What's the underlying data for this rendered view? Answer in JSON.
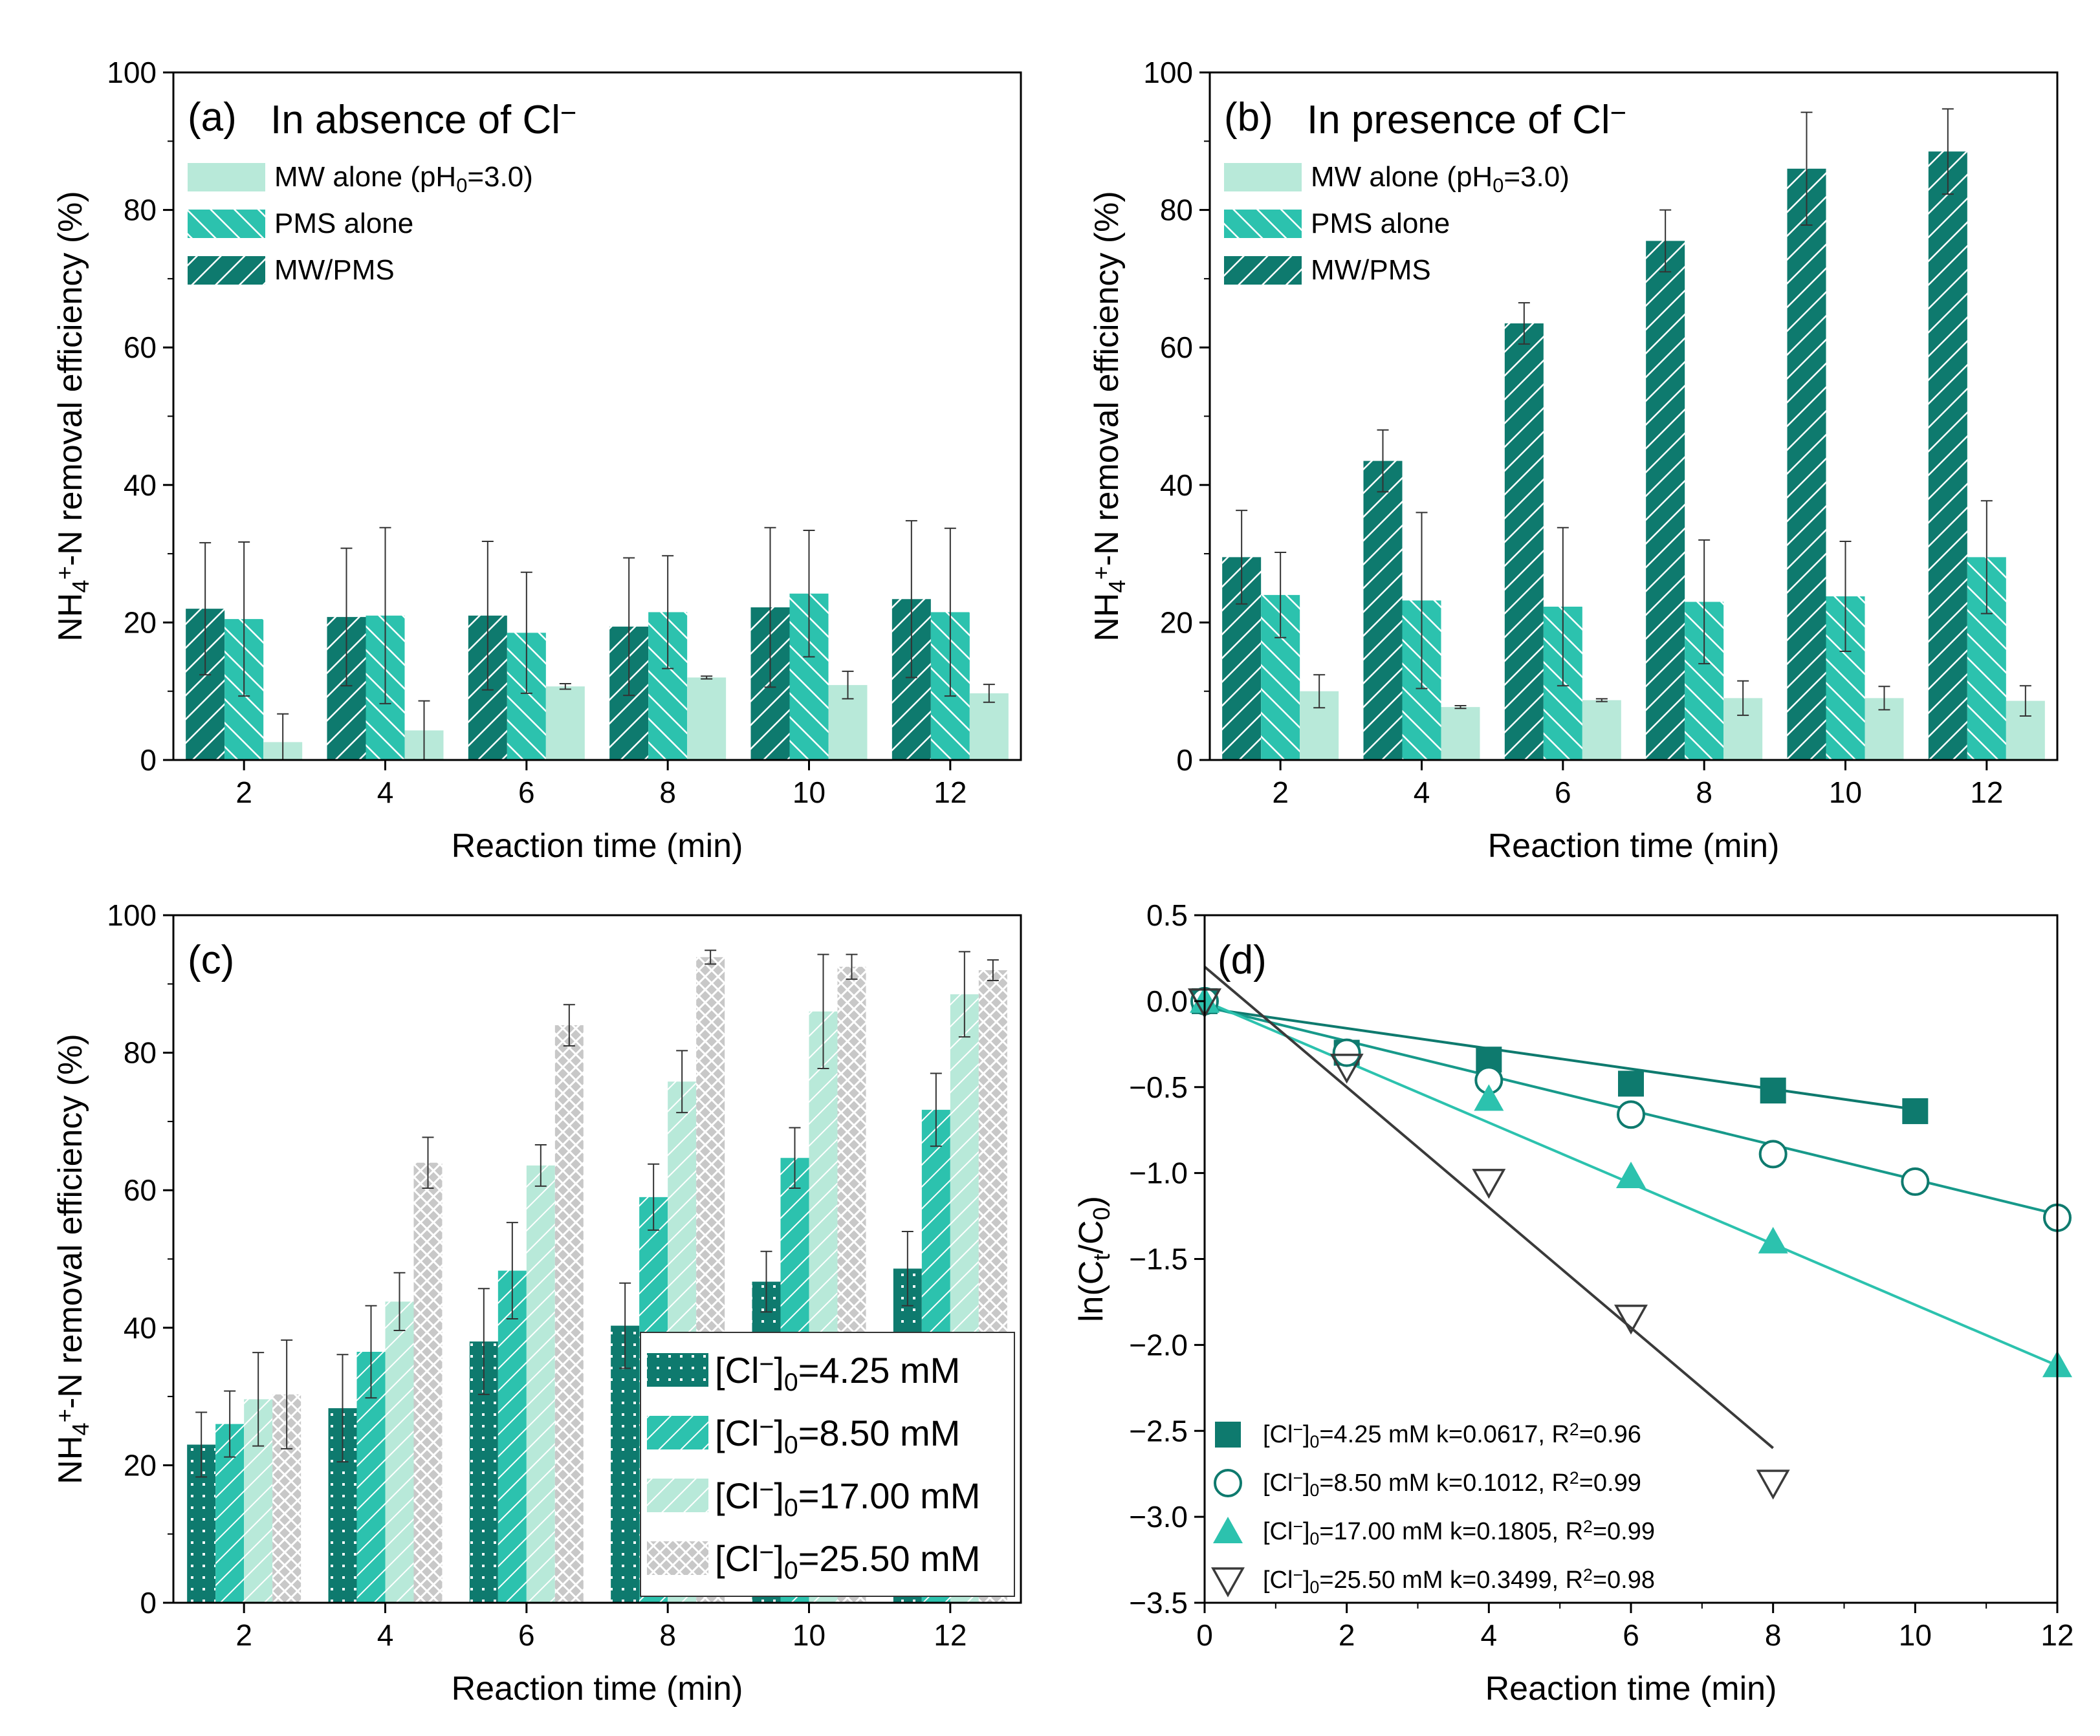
{
  "colors": {
    "dark": "#0e7a6e",
    "mid": "#2cc2ae",
    "light": "#b8e9d9",
    "gray": "#b9b9b9",
    "line_gray": "#3a3a3a"
  },
  "chart_data": [
    {
      "panel": "a",
      "type": "bar",
      "panel_label": "(a)",
      "title": "In absence of Cl⁻",
      "xlabel": "Reaction time (min)",
      "ylabel": "NH4+-N removal efficiency (%)",
      "categories": [
        "2",
        "4",
        "6",
        "8",
        "10",
        "12"
      ],
      "yticks": [
        "0",
        "20",
        "40",
        "60",
        "80",
        "100"
      ],
      "ylim": [
        0,
        100
      ],
      "series": [
        {
          "name": "MW/PMS",
          "values": [
            22,
            20.8,
            21,
            19.4,
            22.2,
            23.4
          ],
          "errors": [
            9.6,
            10,
            10.8,
            10,
            11.6,
            11.4
          ]
        },
        {
          "name": "PMS alone",
          "values": [
            20.5,
            21,
            18.5,
            21.5,
            24.2,
            21.5
          ],
          "errors": [
            11.2,
            12.8,
            8.8,
            8.2,
            9.2,
            12.2
          ]
        },
        {
          "name": "MW alone (pH0=3.0)",
          "values": [
            2.6,
            4.3,
            10.7,
            12,
            10.9,
            9.7
          ],
          "errors": [
            4.1,
            4.3,
            0.4,
            0.2,
            2,
            1.3
          ]
        }
      ],
      "legend": [
        "MW alone (pH0=3.0)",
        "PMS alone",
        "MW/PMS"
      ]
    },
    {
      "panel": "b",
      "type": "bar",
      "panel_label": "(b)",
      "title": "In presence of Cl⁻",
      "xlabel": "Reaction time (min)",
      "ylabel": "NH4+-N removal efficiency (%)",
      "categories": [
        "2",
        "4",
        "6",
        "8",
        "10",
        "12"
      ],
      "yticks": [
        "0",
        "20",
        "40",
        "60",
        "80",
        "100"
      ],
      "ylim": [
        0,
        100
      ],
      "series": [
        {
          "name": "MW/PMS",
          "values": [
            29.5,
            43.5,
            63.5,
            75.5,
            86,
            88.5
          ],
          "errors": [
            6.8,
            4.5,
            3,
            4.5,
            8.2,
            6.2
          ]
        },
        {
          "name": "PMS alone",
          "values": [
            24,
            23.2,
            22.3,
            23,
            23.8,
            29.5
          ],
          "errors": [
            6.2,
            12.8,
            11.5,
            9,
            8,
            8.2
          ]
        },
        {
          "name": "MW alone (pH0=3.0)",
          "values": [
            10,
            7.7,
            8.7,
            9,
            9,
            8.6
          ],
          "errors": [
            2.4,
            0.2,
            0.2,
            2.5,
            1.7,
            2.2
          ]
        }
      ],
      "legend": [
        "MW alone (pH0=3.0)",
        "PMS alone",
        "MW/PMS"
      ]
    },
    {
      "panel": "c",
      "type": "bar",
      "panel_label": "(c)",
      "xlabel": "Reaction time (min)",
      "ylabel": "NH4+-N removal efficiency (%)",
      "categories": [
        "2",
        "4",
        "6",
        "8",
        "10",
        "12"
      ],
      "yticks": [
        "0",
        "20",
        "40",
        "60",
        "80",
        "100"
      ],
      "ylim": [
        0,
        100
      ],
      "series": [
        {
          "name": "[Cl⁻]0=4.25 mM",
          "values": [
            23,
            28.3,
            38,
            40.3,
            46.7,
            48.6
          ],
          "errors": [
            4.7,
            7.8,
            7.7,
            6.2,
            4.4,
            5.4
          ]
        },
        {
          "name": "[Cl⁻]0=8.50 mM",
          "values": [
            26,
            36.5,
            48.3,
            59,
            64.7,
            71.7
          ],
          "errors": [
            4.8,
            6.7,
            7,
            4.8,
            4.4,
            5.3
          ]
        },
        {
          "name": "[Cl⁻]0=17.00 mM",
          "values": [
            29.6,
            43.8,
            63.6,
            75.8,
            86,
            88.5
          ],
          "errors": [
            6.8,
            4.2,
            3,
            4.5,
            8.3,
            6.2
          ]
        },
        {
          "name": "[Cl⁻]0=25.50 mM",
          "values": [
            30.3,
            64,
            84,
            93.9,
            92.5,
            92
          ],
          "errors": [
            7.9,
            3.7,
            3,
            1,
            1.8,
            1.5
          ]
        }
      ],
      "legend": [
        "[Cl⁻]0=4.25 mM",
        "[Cl⁻]0=8.50 mM",
        "[Cl⁻]0=17.00 mM",
        "[Cl⁻]0=25.50 mM"
      ]
    },
    {
      "panel": "d",
      "type": "scatter",
      "panel_label": "(d)",
      "xlabel": "Reaction time (min)",
      "ylabel": "ln(Ct/C0)",
      "xticks": [
        "0",
        "2",
        "4",
        "6",
        "8",
        "10",
        "12"
      ],
      "yticks": [
        "0.5",
        "0.0",
        "−0.5",
        "−1.0",
        "−1.5",
        "−2.0",
        "−2.5",
        "−3.0",
        "−3.5"
      ],
      "xlim": [
        0,
        12
      ],
      "ylim": [
        -3.5,
        0.5
      ],
      "series": [
        {
          "name": "[Cl⁻]0=4.25 mM",
          "label": "[Cl⁻]0=4.25 mM k=0.0617, R²=0.96",
          "marker": "square-filled",
          "x": [
            0,
            2,
            4,
            6,
            8,
            10
          ],
          "y": [
            0,
            -0.3,
            -0.34,
            -0.48,
            -0.52,
            -0.64
          ],
          "fit": [
            [
              0,
              -0.04
            ],
            [
              10,
              -0.63
            ]
          ]
        },
        {
          "name": "[Cl⁻]0=8.50 mM",
          "label": "[Cl⁻]0=8.50 mM k=0.1012, R²=0.99",
          "marker": "circle-open",
          "x": [
            0,
            2,
            4,
            6,
            8,
            10,
            12
          ],
          "y": [
            0,
            -0.3,
            -0.46,
            -0.66,
            -0.89,
            -1.05,
            -1.26
          ],
          "fit": [
            [
              0,
              -0.03
            ],
            [
              12,
              -1.24
            ]
          ]
        },
        {
          "name": "[Cl⁻]0=17.00 mM",
          "label": "[Cl⁻]0=17.00 mM k=0.1805, R²=0.99",
          "marker": "triangle-up-filled",
          "x": [
            0,
            4,
            6,
            8,
            12
          ],
          "y": [
            0,
            -0.57,
            -1.02,
            -1.4,
            -2.12
          ],
          "fit": [
            [
              0,
              0
            ],
            [
              12,
              -2.12
            ]
          ]
        },
        {
          "name": "[Cl⁻]0=25.50 mM",
          "label": "[Cl⁻]0=25.50 mM k=0.3499, R²=0.98",
          "marker": "triangle-down-open",
          "x": [
            0,
            2,
            4,
            6,
            8
          ],
          "y": [
            0,
            -0.38,
            -1.05,
            -1.84,
            -2.8
          ],
          "fit": [
            [
              0,
              0.2
            ],
            [
              8,
              -2.6
            ]
          ]
        }
      ]
    }
  ]
}
